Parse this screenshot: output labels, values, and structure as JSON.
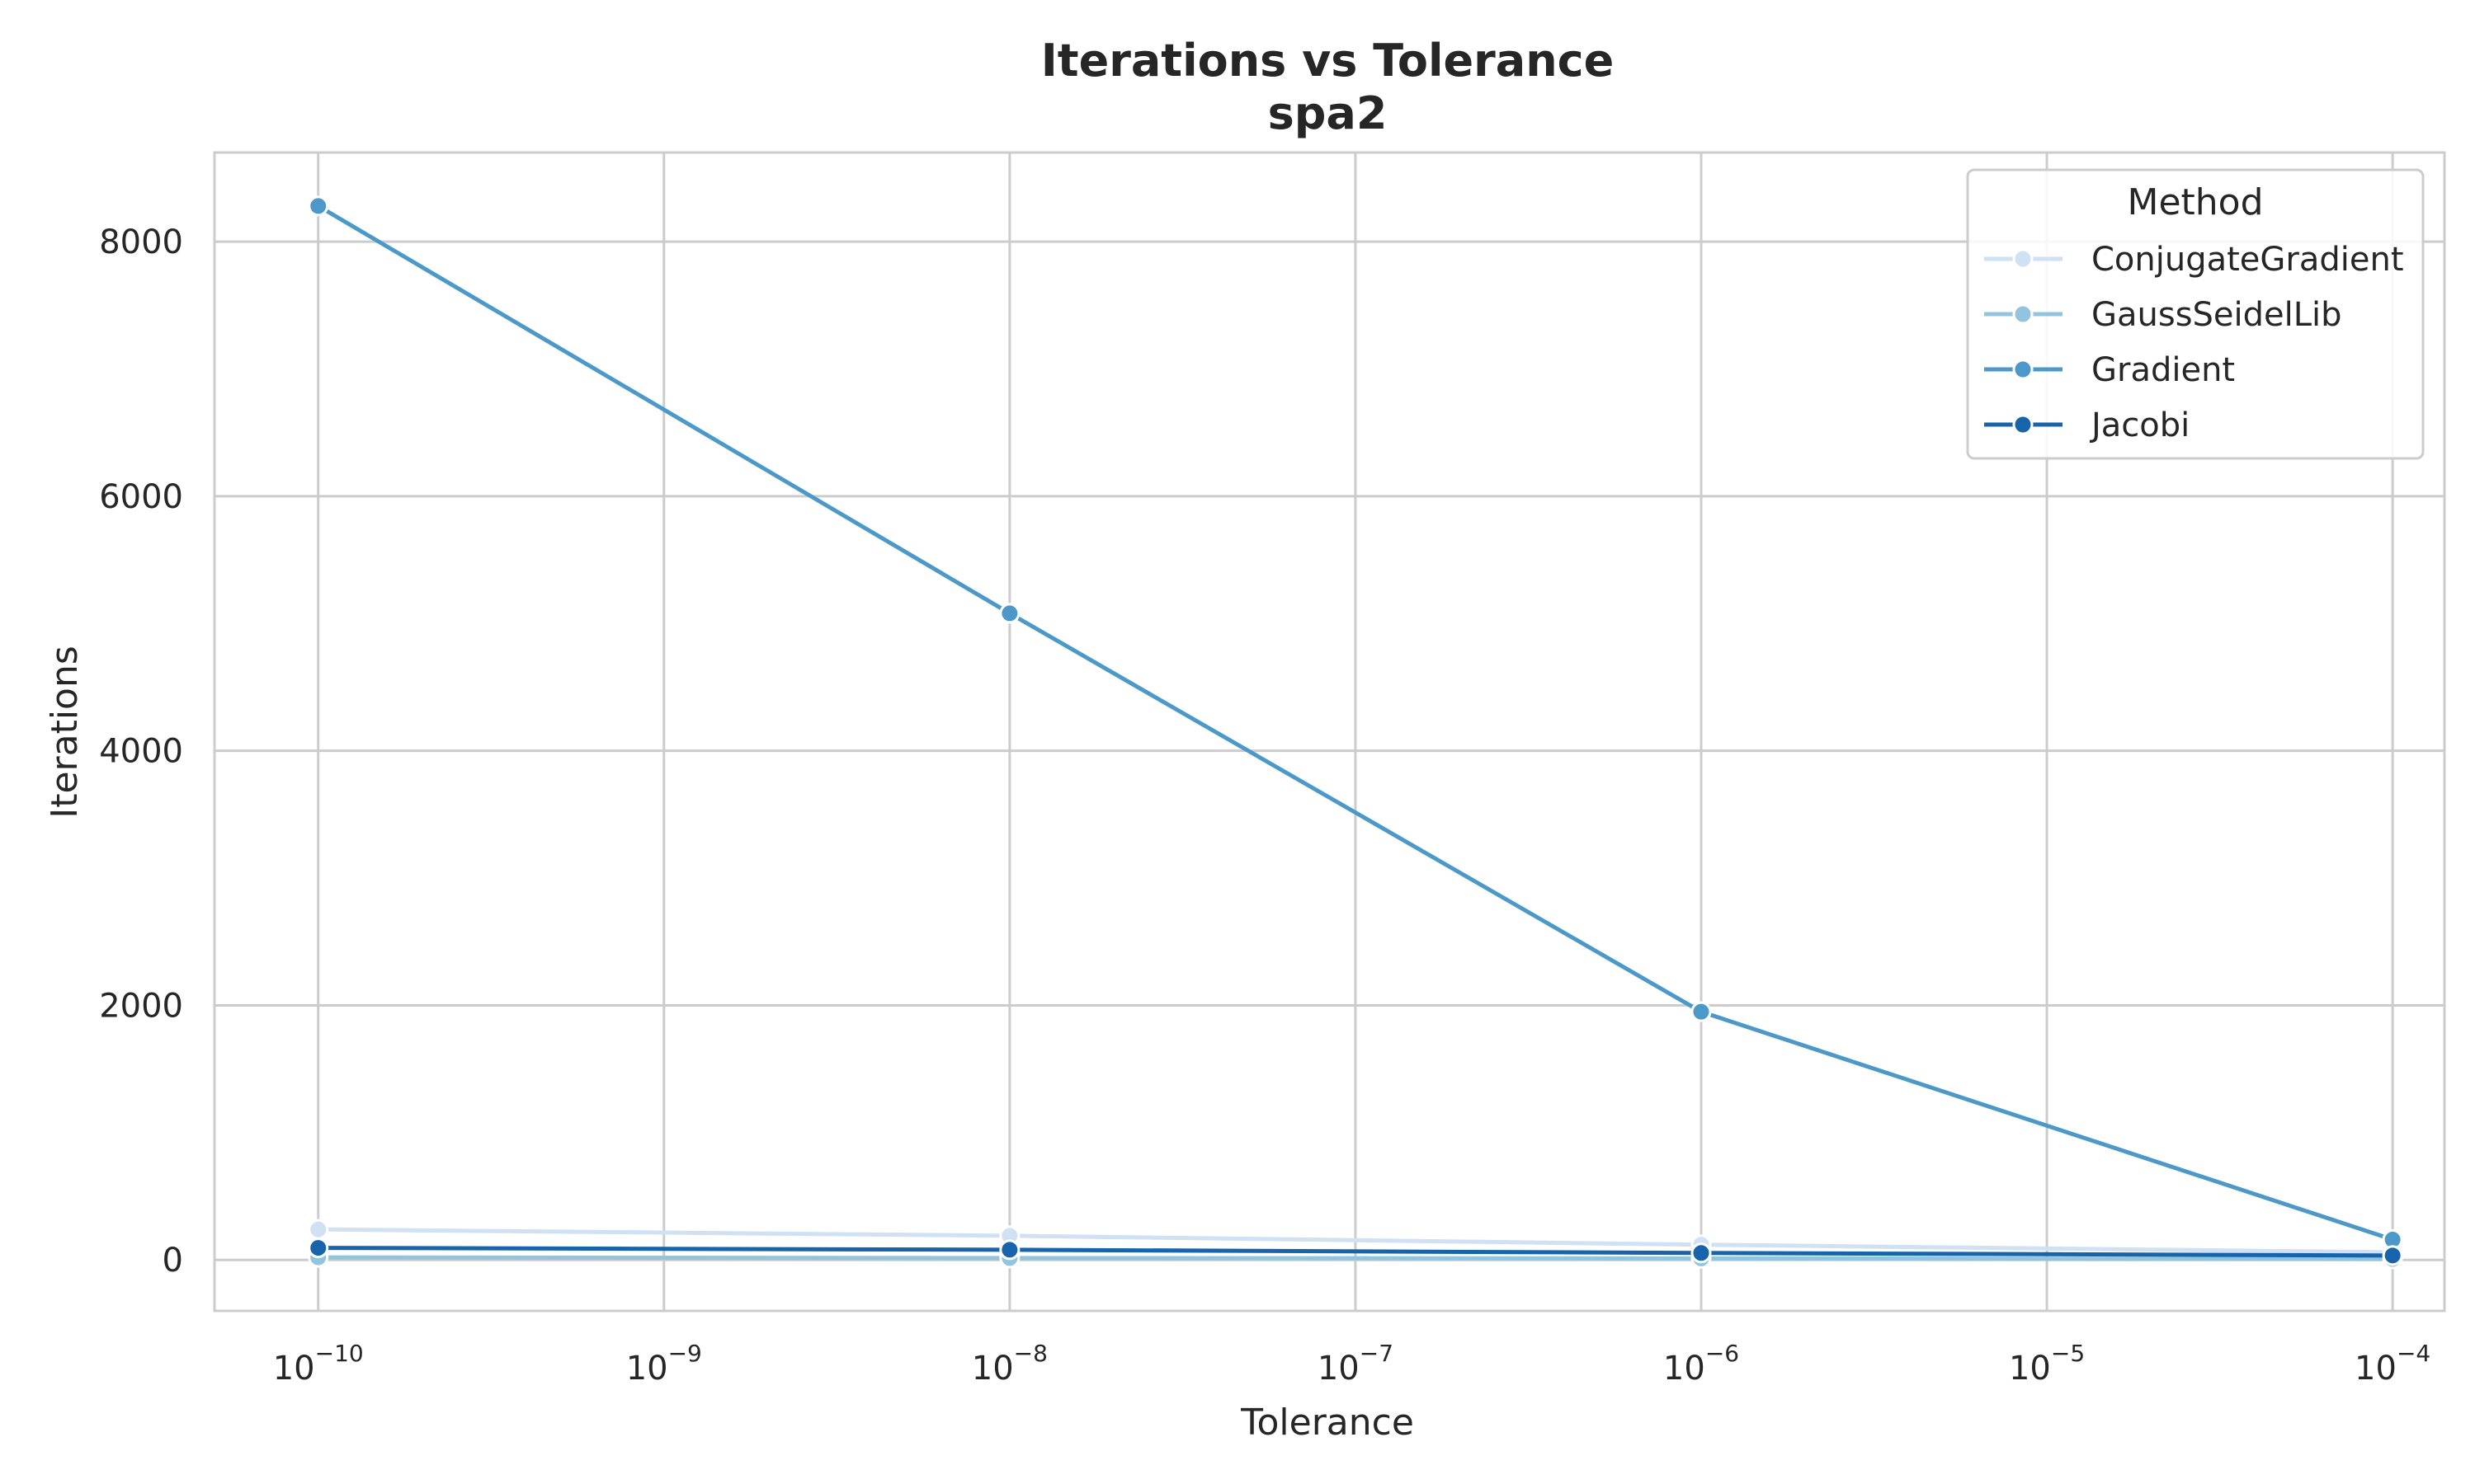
{
  "chart_data": {
    "type": "line",
    "title": "Iterations vs Tolerance",
    "subtitle": "spa2",
    "xlabel": "Tolerance",
    "ylabel": "Iterations",
    "xscale": "log",
    "x_tick_base": "10",
    "x_tick_exponents": [
      "−10",
      "−9",
      "−8",
      "−7",
      "−6",
      "−5",
      "−4"
    ],
    "x_tick_values": [
      1e-10,
      1e-09,
      1e-08,
      1e-07,
      1e-06,
      1e-05,
      0.0001
    ],
    "y_ticks": [
      0,
      2000,
      4000,
      6000,
      8000
    ],
    "ylim": [
      -400,
      8700
    ],
    "xlim_exponent": [
      -10.3,
      -3.85
    ],
    "grid": true,
    "legend_title": "Method",
    "legend_position": "top-right",
    "x": [
      1e-10,
      1e-08,
      1e-06,
      0.0001
    ],
    "series": [
      {
        "name": "ConjugateGradient",
        "color": "#cfe1f2",
        "values": [
          240,
          190,
          120,
          60
        ]
      },
      {
        "name": "GaussSeidelLib",
        "color": "#93c4de",
        "values": [
          20,
          15,
          12,
          8
        ]
      },
      {
        "name": "Gradient",
        "color": "#4b98c9",
        "values": [
          8280,
          5080,
          1950,
          160
        ]
      },
      {
        "name": "Jacobi",
        "color": "#1764ab",
        "values": [
          95,
          80,
          55,
          35
        ]
      }
    ]
  }
}
